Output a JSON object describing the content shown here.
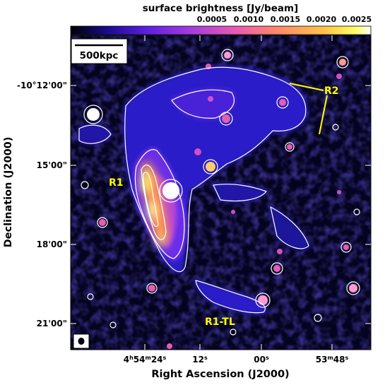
{
  "colorbar": {
    "title": "surface brightness [Jy/beam]",
    "ticks": [
      "0.0005",
      "0.0010",
      "0.0015",
      "0.0020",
      "0.0025"
    ],
    "colors": [
      "#000000",
      "#1a0a8c",
      "#5a1fe0",
      "#a43be0",
      "#e85bb0",
      "#ff8c66",
      "#ffc74a",
      "#ffff66",
      "#ffffff"
    ]
  },
  "map": {
    "scalebar_label": "500kpc",
    "annotation_color": "#ffff00",
    "contour_color": "#ffffff",
    "labels": {
      "r1": "R1",
      "r2": "R2",
      "r1tl": "R1-TL"
    }
  },
  "axes": {
    "xlabel": "Right Ascension (J2000)",
    "ylabel": "Declination (J2000)",
    "xticks": [
      {
        "main": "4",
        "sup1": "h",
        "mid": "54",
        "sup2": "m",
        "tail": "24",
        "sup3": "s"
      },
      {
        "main": "",
        "sup1": "",
        "mid": "",
        "sup2": "",
        "tail": "12",
        "sup3": "s"
      },
      {
        "main": "",
        "sup1": "",
        "mid": "",
        "sup2": "",
        "tail": "00",
        "sup3": "s"
      },
      {
        "main": "",
        "sup1": "",
        "mid": "53",
        "sup2": "m",
        "tail": "48",
        "sup3": "s"
      }
    ],
    "yticks": [
      "-10°12'00\"",
      "15'00\"",
      "18'00\"",
      "21'00\""
    ]
  }
}
